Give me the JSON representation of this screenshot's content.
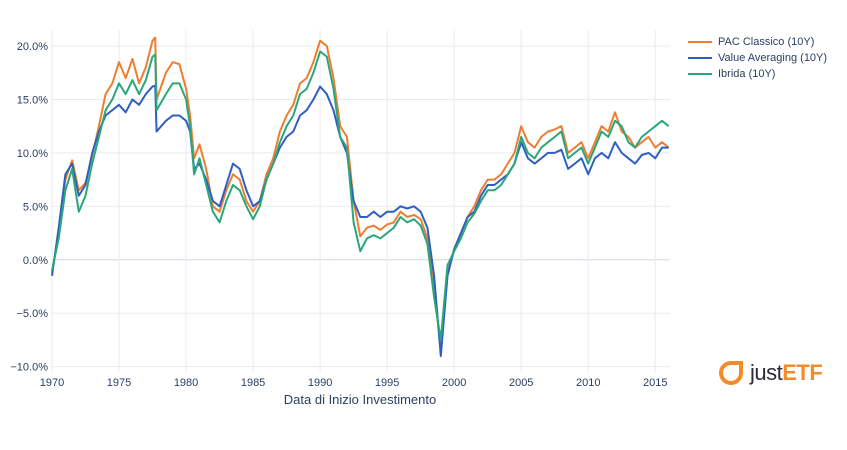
{
  "colors": {
    "pac": "#ef7d31",
    "va": "#2f5fc0",
    "ibrida": "#2aa77a",
    "grid": "#e8ebf0",
    "text": "#2a3f5f",
    "brand": "#f28c28"
  },
  "chart_data": {
    "type": "line",
    "title": "",
    "xlabel": "Data di Inizio Investimento",
    "ylabel": "",
    "xlim": [
      1970,
      2016.1
    ],
    "ylim": [
      -10.5,
      21.5
    ],
    "x_ticks": [
      1970,
      1975,
      1980,
      1985,
      1990,
      1995,
      2000,
      2005,
      2010,
      2015
    ],
    "x_tick_labels": [
      "1970",
      "1975",
      "1980",
      "1985",
      "1990",
      "1995",
      "2000",
      "2005",
      "2010",
      "2015"
    ],
    "y_ticks": [
      -10,
      -5,
      0,
      5,
      10,
      15,
      20
    ],
    "y_tick_labels": [
      "−10.0%",
      "−5.0%",
      "0.0%",
      "5.0%",
      "10.0%",
      "15.0%",
      "20.0%"
    ],
    "x": [
      1970,
      1970.5,
      1971,
      1971.5,
      1972,
      1972.5,
      1973,
      1973.5,
      1974,
      1974.5,
      1975,
      1975.5,
      1976,
      1976.5,
      1977,
      1977.5,
      1977.7,
      1977.8,
      1978.5,
      1979,
      1979.5,
      1980,
      1980.3,
      1980.6,
      1981,
      1981.5,
      1982,
      1982.5,
      1983,
      1983.5,
      1984,
      1984.5,
      1985,
      1985.5,
      1986,
      1986.5,
      1987,
      1987.5,
      1988,
      1988.5,
      1989,
      1989.5,
      1990,
      1990.5,
      1991,
      1991.5,
      1992,
      1992.5,
      1993,
      1993.5,
      1994,
      1994.5,
      1995,
      1995.5,
      1996,
      1996.5,
      1997,
      1997.5,
      1998,
      1998.5,
      1999,
      1999.5,
      2000,
      2000.5,
      2001,
      2001.5,
      2002,
      2002.5,
      2003,
      2003.5,
      2004,
      2004.5,
      2005,
      2005.5,
      2006,
      2006.5,
      2007,
      2007.5,
      2008,
      2008.5,
      2009,
      2009.5,
      2010,
      2010.5,
      2011,
      2011.5,
      2012,
      2012.5,
      2013,
      2013.5,
      2014,
      2014.5,
      2015,
      2015.5,
      2016
    ],
    "series": [
      {
        "name": "PAC Classico (10Y)",
        "values": [
          -1.2,
          2.5,
          7.5,
          9.3,
          6.5,
          7.2,
          9.8,
          12.5,
          15.5,
          16.5,
          18.5,
          17.0,
          18.8,
          16.5,
          18.0,
          20.5,
          20.8,
          15.0,
          17.5,
          18.5,
          18.3,
          16.0,
          13.5,
          9.5,
          10.8,
          8.5,
          5.0,
          4.5,
          6.5,
          8.0,
          7.5,
          5.5,
          4.5,
          5.5,
          8.0,
          9.5,
          12.0,
          13.5,
          14.5,
          16.5,
          17.0,
          18.5,
          20.5,
          20.0,
          17.0,
          12.5,
          11.5,
          5.5,
          2.2,
          3.0,
          3.2,
          2.8,
          3.3,
          3.5,
          4.5,
          4.0,
          4.2,
          3.8,
          2.0,
          -2.5,
          -8.5,
          -1.0,
          1.0,
          2.5,
          4.0,
          5.0,
          6.5,
          7.5,
          7.5,
          8.0,
          9.0,
          10.0,
          12.5,
          11.0,
          10.5,
          11.5,
          12.0,
          12.2,
          12.5,
          10.0,
          10.5,
          11.0,
          9.5,
          11.0,
          12.5,
          12.0,
          13.8,
          12.0,
          11.5,
          10.5,
          11.0,
          11.5,
          10.5,
          11.0,
          10.5
        ]
      },
      {
        "name": "Value Averaging (10Y)",
        "values": [
          -1.5,
          3.0,
          8.0,
          9.0,
          6.0,
          7.0,
          10.0,
          12.0,
          13.5,
          14.0,
          14.5,
          13.8,
          15.0,
          14.5,
          15.5,
          16.2,
          16.3,
          12.0,
          13.0,
          13.5,
          13.5,
          13.0,
          12.0,
          8.5,
          9.0,
          7.5,
          5.5,
          5.0,
          7.0,
          9.0,
          8.5,
          6.5,
          5.0,
          5.5,
          7.5,
          9.0,
          10.5,
          11.5,
          12.0,
          13.5,
          14.0,
          15.0,
          16.2,
          15.5,
          14.0,
          11.5,
          10.0,
          5.5,
          4.0,
          4.0,
          4.5,
          4.0,
          4.5,
          4.5,
          5.0,
          4.8,
          5.0,
          4.5,
          3.0,
          -1.5,
          -9.0,
          -1.5,
          1.0,
          2.5,
          4.0,
          4.5,
          6.0,
          7.0,
          7.0,
          7.5,
          8.0,
          9.0,
          11.0,
          9.5,
          9.0,
          9.5,
          10.0,
          10.0,
          10.3,
          8.5,
          9.0,
          9.5,
          8.0,
          9.5,
          10.0,
          9.5,
          11.0,
          10.0,
          9.5,
          9.0,
          9.8,
          10.0,
          9.5,
          10.5,
          10.5
        ]
      },
      {
        "name": "Ibrida (10Y)",
        "values": [
          -1.0,
          2.0,
          6.5,
          8.5,
          4.5,
          6.0,
          9.0,
          11.5,
          14.0,
          15.0,
          16.5,
          15.5,
          16.8,
          15.5,
          16.8,
          19.0,
          19.2,
          14.0,
          15.5,
          16.5,
          16.5,
          15.0,
          12.5,
          8.0,
          9.5,
          7.0,
          4.5,
          3.5,
          5.5,
          7.0,
          6.5,
          5.0,
          3.8,
          5.0,
          7.5,
          9.0,
          11.0,
          12.5,
          13.5,
          15.5,
          16.0,
          17.5,
          19.5,
          19.0,
          16.0,
          11.5,
          10.5,
          3.5,
          0.8,
          2.0,
          2.3,
          2.0,
          2.5,
          3.0,
          4.0,
          3.5,
          3.8,
          3.2,
          1.5,
          -3.5,
          -7.5,
          -0.5,
          0.8,
          2.0,
          3.5,
          4.3,
          5.5,
          6.5,
          6.5,
          7.0,
          8.0,
          9.0,
          11.5,
          10.0,
          9.5,
          10.5,
          11.0,
          11.5,
          12.0,
          9.5,
          10.0,
          10.5,
          9.0,
          10.5,
          12.0,
          11.5,
          13.0,
          12.5,
          11.0,
          10.5,
          11.5,
          12.0,
          12.5,
          13.0,
          12.5
        ]
      }
    ]
  },
  "legend": {
    "items": [
      {
        "label": "PAC Classico (10Y)",
        "color": "#ef7d31"
      },
      {
        "label": "Value Averaging (10Y)",
        "color": "#2f5fc0"
      },
      {
        "label": "Ibrida (10Y)",
        "color": "#2aa77a"
      }
    ]
  },
  "brand": {
    "prefix": "just",
    "strong": "ETF"
  }
}
